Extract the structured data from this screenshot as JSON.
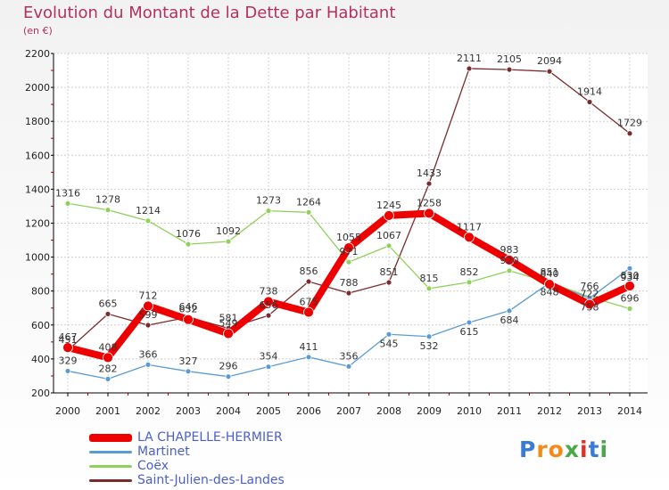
{
  "header": {
    "title": "Evolution du Montant de la Dette par Habitant",
    "unit": "(en €)"
  },
  "brand": {
    "logo_text": "Proxiti"
  },
  "colors": {
    "title": "#b4305f",
    "legend_text": "#4a5fd2",
    "grid": "#d0d0d0",
    "axis": "#000000"
  },
  "chart_data": {
    "type": "line",
    "title": "Evolution du Montant de la Dette par Habitant",
    "subtitle": "(en €)",
    "xlabel": "",
    "ylabel": "",
    "ylim": [
      200,
      2200
    ],
    "yticks": [
      200,
      400,
      600,
      800,
      1000,
      1200,
      1400,
      1600,
      1800,
      2000,
      2200
    ],
    "x": [
      "2000",
      "2001",
      "2002",
      "2003",
      "2004",
      "2005",
      "2006",
      "2007",
      "2008",
      "2009",
      "2010",
      "2011",
      "2012",
      "2013",
      "2014"
    ],
    "grid": true,
    "legend_position": "bottom-left",
    "series": [
      {
        "name": "LA CHAPELLE-HERMIER",
        "color": "#ee0000",
        "values": [
          467,
          408,
          712,
          632,
          549,
          738,
          675,
          1055,
          1245,
          1258,
          1117,
          983,
          840,
          722,
          830
        ]
      },
      {
        "name": "Martinet",
        "color": "#5b9bd5",
        "values": [
          329,
          282,
          366,
          327,
          296,
          354,
          411,
          356,
          545,
          532,
          615,
          684,
          848,
          758,
          934
        ]
      },
      {
        "name": "Coëx",
        "color": "#8fd15c",
        "values": [
          1316,
          1278,
          1214,
          1076,
          1092,
          1273,
          1264,
          971,
          1067,
          815,
          852,
          920,
          851,
          766,
          696
        ]
      },
      {
        "name": "Saint-Julien-des-Landes",
        "color": "#7a2c2c",
        "values": [
          451,
          665,
          599,
          646,
          581,
          656,
          856,
          788,
          851,
          1433,
          2111,
          2105,
          2094,
          1914,
          1729
        ]
      }
    ]
  }
}
